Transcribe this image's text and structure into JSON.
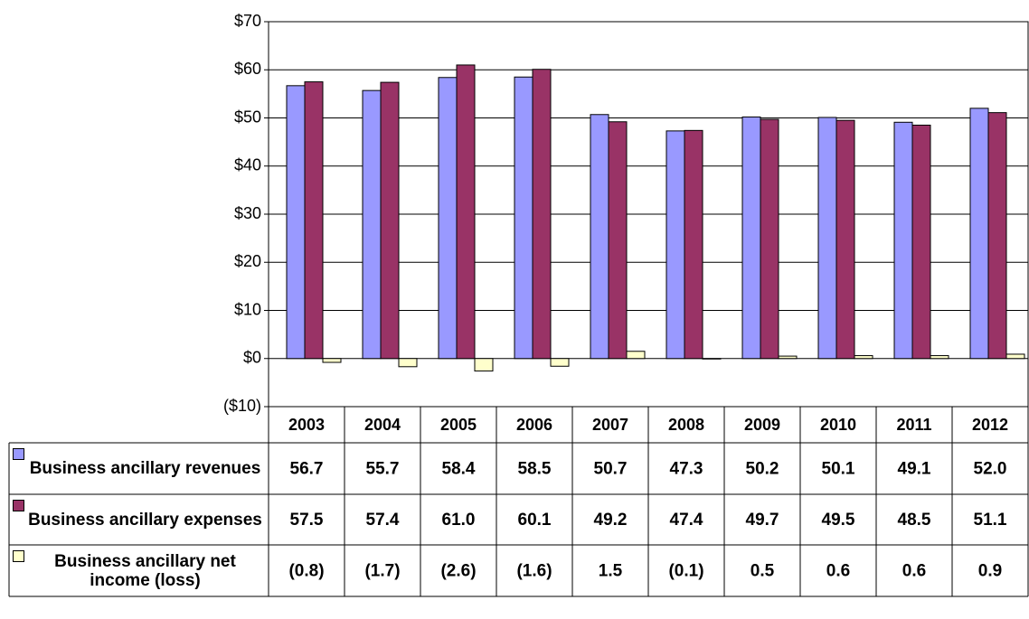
{
  "chart_data": {
    "type": "bar",
    "categories": [
      "2003",
      "2004",
      "2005",
      "2006",
      "2007",
      "2008",
      "2009",
      "2010",
      "2011",
      "2012"
    ],
    "series": [
      {
        "name": "Business ancillary revenues",
        "color": "#9999ff",
        "values": [
          56.7,
          55.7,
          58.4,
          58.5,
          50.7,
          47.3,
          50.2,
          50.1,
          49.1,
          52.0
        ],
        "value_labels": [
          "56.7",
          "55.7",
          "58.4",
          "58.5",
          "50.7",
          "47.3",
          "50.2",
          "50.1",
          "49.1",
          "52.0"
        ]
      },
      {
        "name": "Business ancillary expenses",
        "color": "#993366",
        "values": [
          57.5,
          57.4,
          61.0,
          60.1,
          49.2,
          47.4,
          49.7,
          49.5,
          48.5,
          51.1
        ],
        "value_labels": [
          "57.5",
          "57.4",
          "61.0",
          "60.1",
          "49.2",
          "47.4",
          "49.7",
          "49.5",
          "48.5",
          "51.1"
        ]
      },
      {
        "name": "Business ancillary net income (loss)",
        "color": "#ffffcc",
        "values": [
          -0.8,
          -1.7,
          -2.6,
          -1.6,
          1.5,
          -0.1,
          0.5,
          0.6,
          0.6,
          0.9
        ],
        "value_labels": [
          "(0.8)",
          "(1.7)",
          "(2.6)",
          "(1.6)",
          "1.5",
          "(0.1)",
          "0.5",
          "0.6",
          "0.6",
          "0.9"
        ]
      }
    ],
    "ylim": [
      -10,
      70
    ],
    "yticks": [
      {
        "value": -10,
        "label": "($10)"
      },
      {
        "value": 0,
        "label": "$0"
      },
      {
        "value": 10,
        "label": "$10"
      },
      {
        "value": 20,
        "label": "$20"
      },
      {
        "value": 30,
        "label": "$30"
      },
      {
        "value": 40,
        "label": "$40"
      },
      {
        "value": 50,
        "label": "$50"
      },
      {
        "value": 60,
        "label": "$60"
      },
      {
        "value": 70,
        "label": "$70"
      }
    ],
    "grid": true
  }
}
